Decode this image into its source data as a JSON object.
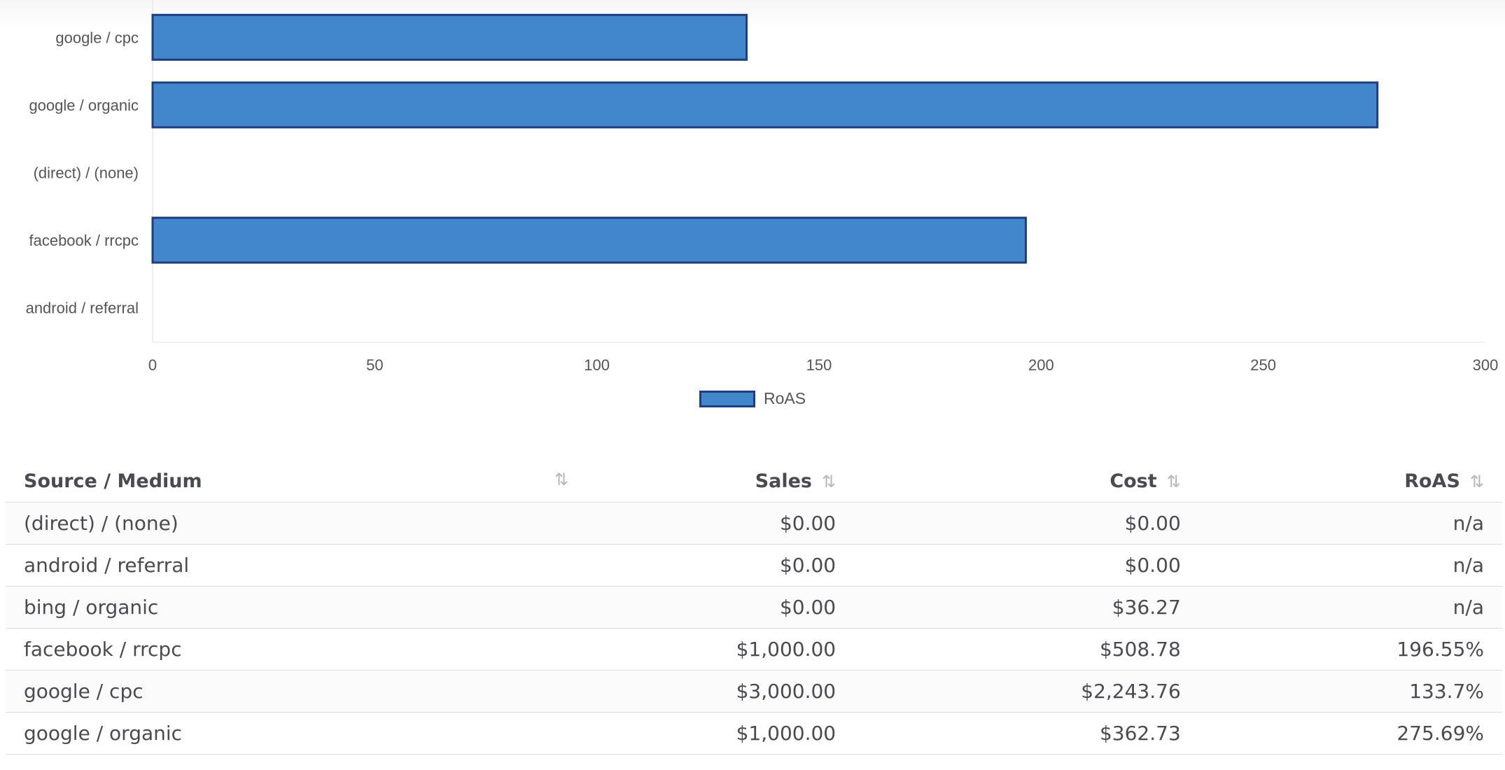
{
  "chart_data": {
    "type": "bar",
    "orientation": "horizontal",
    "categories": [
      "google / cpc",
      "google / organic",
      "(direct) / (none)",
      "facebook / rrcpc",
      "android / referral"
    ],
    "series": [
      {
        "name": "RoAS",
        "values": [
          133.7,
          275.69,
          0,
          196.55,
          0
        ]
      }
    ],
    "xlim": [
      0,
      300
    ],
    "xticks": [
      "0",
      "50",
      "100",
      "150",
      "200",
      "250",
      "300"
    ],
    "legend_position": "bottom",
    "colors": {
      "bar_fill": "#4287cb",
      "bar_border": "#1e3d83"
    }
  },
  "legend": {
    "label": "RoAS"
  },
  "table": {
    "headers": {
      "source": "Source / Medium",
      "sales": "Sales",
      "cost": "Cost",
      "roas": "RoAS",
      "sort_glyph": "⇅"
    },
    "rows": [
      {
        "source": "(direct) / (none)",
        "sales": "$0.00",
        "cost": "$0.00",
        "roas": "n/a"
      },
      {
        "source": "android / referral",
        "sales": "$0.00",
        "cost": "$0.00",
        "roas": "n/a"
      },
      {
        "source": "bing / organic",
        "sales": "$0.00",
        "cost": "$36.27",
        "roas": "n/a"
      },
      {
        "source": "facebook / rrcpc",
        "sales": "$1,000.00",
        "cost": "$508.78",
        "roas": "196.55%"
      },
      {
        "source": "google / cpc",
        "sales": "$3,000.00",
        "cost": "$2,243.76",
        "roas": "133.7%"
      },
      {
        "source": "google / organic",
        "sales": "$1,000.00",
        "cost": "$362.73",
        "roas": "275.69%"
      }
    ]
  }
}
